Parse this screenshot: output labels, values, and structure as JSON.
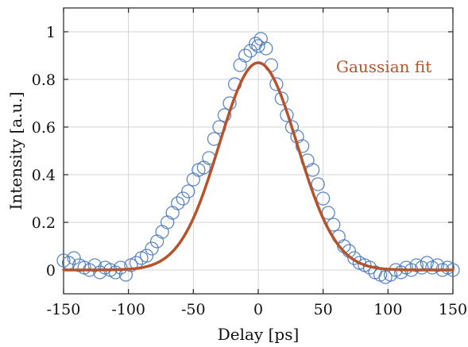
{
  "colors": {
    "data": "#3f72b8",
    "fit": "#b5532c",
    "grid": "#d4d4d4",
    "axis": "#222222"
  },
  "chart_data": {
    "type": "scatter",
    "title": "",
    "xlabel": "Delay [ps]",
    "ylabel": "Intensity [a.u.]",
    "xlim": [
      -150,
      150
    ],
    "ylim": [
      -0.1,
      1.1
    ],
    "xticks": [
      -150,
      -100,
      -50,
      0,
      50,
      100,
      150
    ],
    "xtick_labels": [
      "-150",
      "-100",
      "-50",
      "0",
      "50",
      "100",
      "150"
    ],
    "yticks": [
      0,
      0.2,
      0.4,
      0.6,
      0.8,
      1
    ],
    "ytick_labels": [
      "0",
      "0.2",
      "0.4",
      "0.6",
      "0.8",
      "1"
    ],
    "grid": true,
    "series": [
      {
        "marker": "open-circle",
        "x": [
          -150,
          -146,
          -142,
          -138,
          -134,
          -130,
          -126,
          -122,
          -118,
          -114,
          -110,
          -106,
          -102,
          -98,
          -94,
          -90,
          -86,
          -82,
          -78,
          -74,
          -70,
          -66,
          -62,
          -58,
          -54,
          -50,
          -46,
          -42,
          -38,
          -34,
          -30,
          -26,
          -22,
          -18,
          -14,
          -10,
          -6,
          -2,
          0,
          2,
          6,
          10,
          14,
          18,
          22,
          26,
          30,
          34,
          38,
          42,
          46,
          50,
          54,
          58,
          62,
          66,
          70,
          74,
          78,
          82,
          86,
          90,
          94,
          98,
          102,
          106,
          110,
          114,
          118,
          122,
          126,
          130,
          134,
          138,
          142,
          146,
          150
        ],
        "y": [
          0.04,
          0.03,
          0.05,
          0.02,
          0.01,
          0.0,
          0.02,
          -0.01,
          0.01,
          0.0,
          -0.01,
          0.01,
          -0.02,
          0.02,
          0.03,
          0.05,
          0.06,
          0.09,
          0.12,
          0.16,
          0.2,
          0.24,
          0.28,
          0.3,
          0.33,
          0.38,
          0.42,
          0.43,
          0.47,
          0.55,
          0.6,
          0.65,
          0.7,
          0.78,
          0.86,
          0.9,
          0.92,
          0.95,
          0.94,
          0.97,
          0.93,
          0.86,
          0.78,
          0.72,
          0.65,
          0.6,
          0.56,
          0.52,
          0.46,
          0.42,
          0.36,
          0.3,
          0.24,
          0.19,
          0.14,
          0.1,
          0.08,
          0.05,
          0.03,
          0.02,
          0.01,
          -0.01,
          -0.02,
          -0.03,
          -0.02,
          0.0,
          -0.01,
          0.01,
          0.0,
          0.02,
          0.01,
          0.03,
          0.01,
          0.02,
          0.0,
          0.01,
          0.0
        ]
      },
      {
        "name": "Gaussian fit",
        "model": "gaussian",
        "amplitude": 0.87,
        "center": 0,
        "sigma": 30
      }
    ],
    "annotations": [
      {
        "text": "Gaussian fit",
        "x": 60,
        "y": 0.83
      }
    ]
  }
}
